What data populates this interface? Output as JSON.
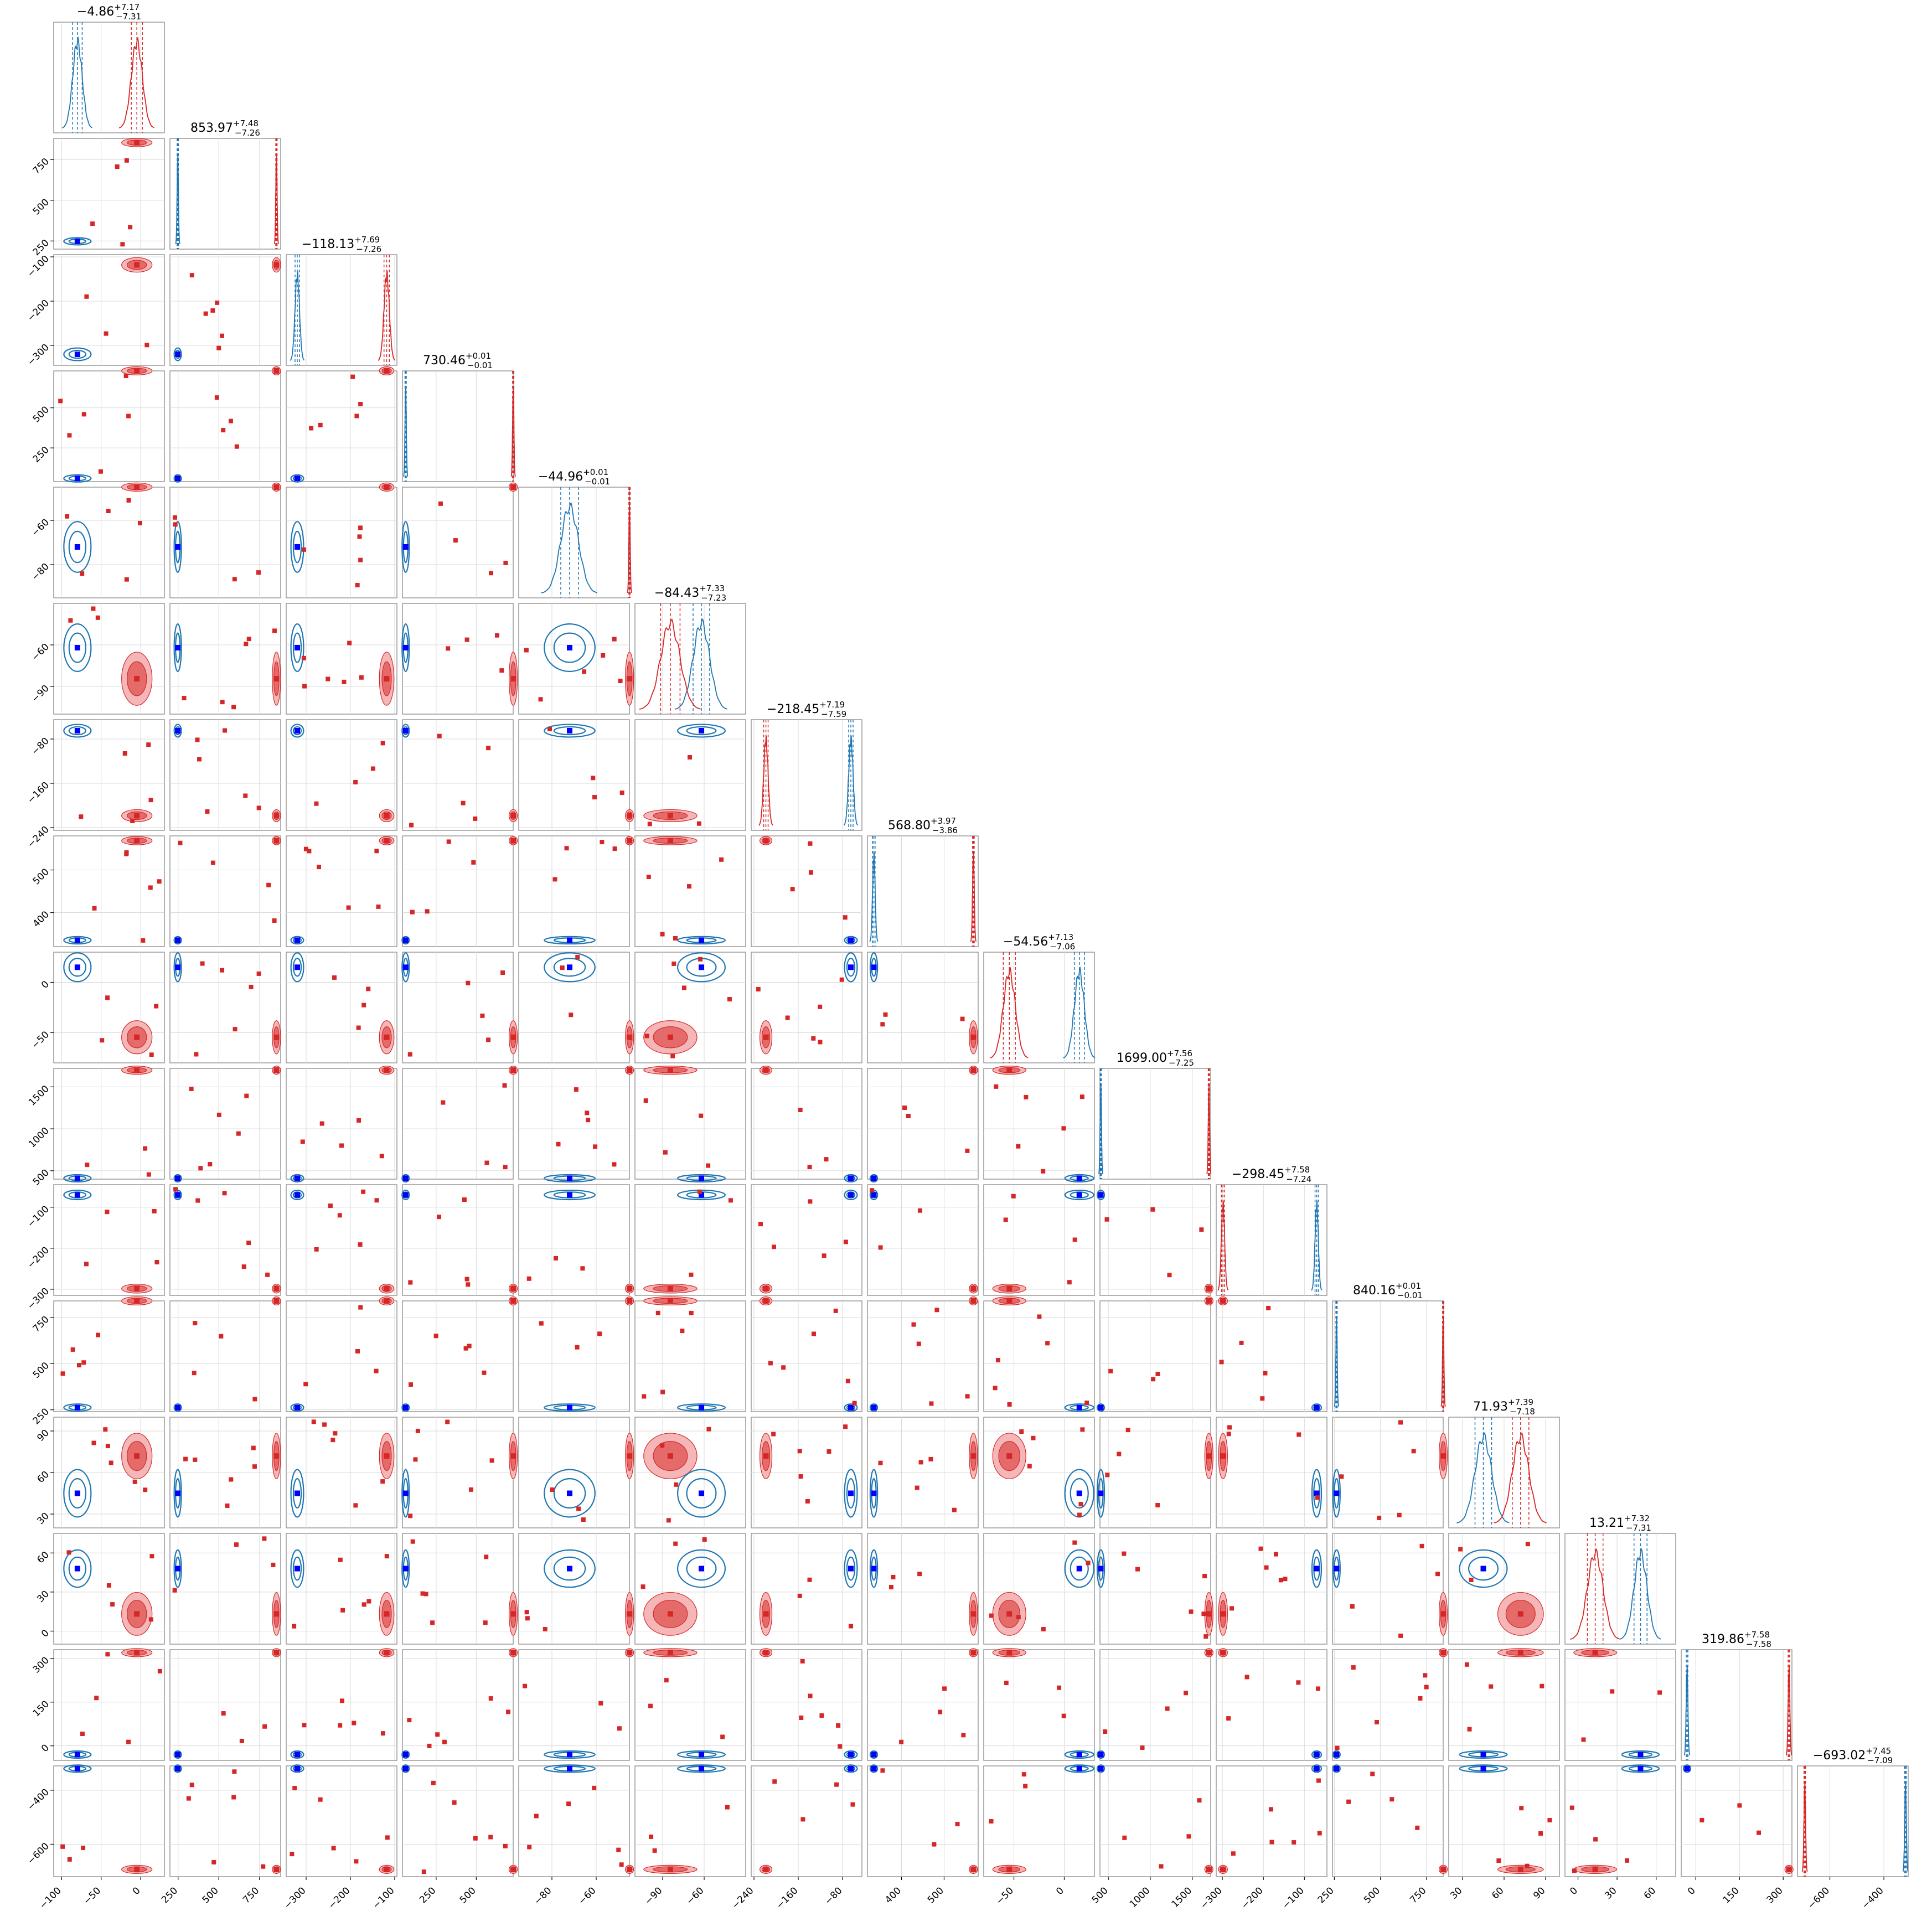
{
  "colors": {
    "blue": "#1f77b4",
    "red": "#d62728",
    "marker": "#0000ff",
    "grid": "#d9d9d9",
    "frame": "#999999"
  },
  "chart_data": {
    "type": "scatter",
    "subtype": "corner-plot",
    "grid": true,
    "parameters": [
      {
        "title": "−4.86",
        "plus": "+7.17",
        "minus": "−7.31",
        "range": [
          -110,
          30
        ],
        "ticks": [
          -100,
          -50,
          0
        ],
        "tick_labels": [
          "−100",
          "−50",
          "0"
        ],
        "blue": {
          "mean": -80,
          "sd": 6
        },
        "red": {
          "mean": -4.86,
          "sd": 7
        }
      },
      {
        "title": "853.97",
        "plus": "+7.48",
        "minus": "−7.26",
        "range": [
          200,
          880
        ],
        "ticks": [
          250,
          500,
          750
        ],
        "tick_labels": [
          "250",
          "500",
          "750"
        ],
        "blue": {
          "mean": 248,
          "sd": 2
        },
        "red": {
          "mean": 853.97,
          "sd": 3
        }
      },
      {
        "title": "−118.13",
        "plus": "+7.69",
        "minus": "−7.26",
        "range": [
          -345,
          -95
        ],
        "ticks": [
          -300,
          -200,
          -100
        ],
        "tick_labels": [
          "−300",
          "−200",
          "−100"
        ],
        "blue": {
          "mean": -320,
          "sd": 5
        },
        "red": {
          "mean": -118.13,
          "sd": 6
        }
      },
      {
        "title": "730.46",
        "plus": "+0.01",
        "minus": "−0.01",
        "range": [
          40,
          730
        ],
        "ticks": [
          250,
          500
        ],
        "tick_labels": [
          "250",
          "500"
        ],
        "blue": {
          "mean": 60,
          "sd": 1.5
        },
        "red": {
          "mean": 730.46,
          "sd": 0.3
        }
      },
      {
        "title": "−44.96",
        "plus": "+0.01",
        "minus": "−0.01",
        "range": [
          -95,
          -45
        ],
        "ticks": [
          -80,
          -60
        ],
        "tick_labels": [
          "−80",
          "−60"
        ],
        "blue": {
          "mean": -72,
          "sd": 4
        },
        "red": {
          "mean": -44.96,
          "sd": 0.1
        }
      },
      {
        "title": "−84.43",
        "plus": "+7.33",
        "minus": "−7.23",
        "range": [
          -110,
          -30
        ],
        "ticks": [
          -90,
          -60
        ],
        "tick_labels": [
          "−90",
          "−60"
        ],
        "blue": {
          "mean": -62,
          "sd": 6
        },
        "red": {
          "mean": -84.43,
          "sd": 7
        }
      },
      {
        "title": "−218.45",
        "plus": "+7.19",
        "minus": "−7.59",
        "range": [
          -245,
          -45
        ],
        "ticks": [
          -240,
          -160,
          -80
        ],
        "tick_labels": [
          "−240",
          "−160",
          "−80"
        ],
        "blue": {
          "mean": -65,
          "sd": 4
        },
        "red": {
          "mean": -218.45,
          "sd": 4
        }
      },
      {
        "title": "568.80",
        "plus": "+3.97",
        "minus": "−3.86",
        "range": [
          320,
          580
        ],
        "ticks": [
          400,
          500
        ],
        "tick_labels": [
          "400",
          "500"
        ],
        "blue": {
          "mean": 335,
          "sd": 3
        },
        "red": {
          "mean": 568.8,
          "sd": 2
        }
      },
      {
        "title": "−54.56",
        "plus": "+7.13",
        "minus": "−7.06",
        "range": [
          -80,
          30
        ],
        "ticks": [
          -50,
          0
        ],
        "tick_labels": [
          "−50",
          "0"
        ],
        "blue": {
          "mean": 15,
          "sd": 5
        },
        "red": {
          "mean": -54.56,
          "sd": 6
        }
      },
      {
        "title": "1699.00",
        "plus": "+7.56",
        "minus": "−7.25",
        "range": [
          400,
          1720
        ],
        "ticks": [
          500,
          1000,
          1500
        ],
        "tick_labels": [
          "500",
          "1000",
          "1500"
        ],
        "blue": {
          "mean": 410,
          "sd": 3
        },
        "red": {
          "mean": 1699.0,
          "sd": 3
        }
      },
      {
        "title": "−298.45",
        "plus": "+7.58",
        "minus": "−7.24",
        "range": [
          -315,
          -45
        ],
        "ticks": [
          -300,
          -200,
          -100
        ],
        "tick_labels": [
          "−300",
          "−200",
          "−100"
        ],
        "blue": {
          "mean": -70,
          "sd": 4
        },
        "red": {
          "mean": -298.45,
          "sd": 4
        }
      },
      {
        "title": "840.16",
        "plus": "+0.01",
        "minus": "−0.01",
        "range": [
          240,
          840
        ],
        "ticks": [
          250,
          500,
          750
        ],
        "tick_labels": [
          "250",
          "500",
          "750"
        ],
        "blue": {
          "mean": 262,
          "sd": 1.5
        },
        "red": {
          "mean": 840.16,
          "sd": 0.3
        }
      },
      {
        "title": "71.93",
        "plus": "+7.39",
        "minus": "−7.18",
        "range": [
          20,
          100
        ],
        "ticks": [
          30,
          60,
          90
        ],
        "tick_labels": [
          "30",
          "60",
          "90"
        ],
        "blue": {
          "mean": 45,
          "sd": 6
        },
        "red": {
          "mean": 71.93,
          "sd": 6
        }
      },
      {
        "title": "13.21",
        "plus": "+7.32",
        "minus": "−7.31",
        "range": [
          -10,
          75
        ],
        "ticks": [
          0,
          30,
          60
        ],
        "tick_labels": [
          "0",
          "30",
          "60"
        ],
        "blue": {
          "mean": 48,
          "sd": 5
        },
        "red": {
          "mean": 13.21,
          "sd": 6
        }
      },
      {
        "title": "319.86",
        "plus": "+7.58",
        "minus": "−7.58",
        "range": [
          -50,
          330
        ],
        "ticks": [
          0,
          150,
          300
        ],
        "tick_labels": [
          "0",
          "150",
          "300"
        ],
        "blue": {
          "mean": -30,
          "sd": 3
        },
        "red": {
          "mean": 319.86,
          "sd": 3
        }
      },
      {
        "title": "−693.02",
        "plus": "+7.45",
        "minus": "−7.09",
        "range": [
          -720,
          -310
        ],
        "ticks": [
          -600,
          -400
        ],
        "tick_labels": [
          "−600",
          "−400"
        ],
        "blue": {
          "mean": -320,
          "sd": 3
        },
        "red": {
          "mean": -693.02,
          "sd": 3
        }
      }
    ]
  }
}
